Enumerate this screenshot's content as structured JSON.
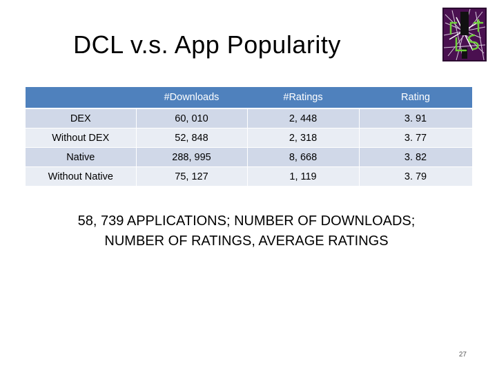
{
  "slide": {
    "title": "DCL v.s. App Popularity",
    "table": {
      "headers": [
        "",
        "#Downloads",
        "#Ratings",
        "Rating"
      ],
      "rows": [
        [
          "DEX",
          "60, 010",
          "2, 448",
          "3. 91"
        ],
        [
          "Without DEX",
          "52, 848",
          "2, 318",
          "3. 77"
        ],
        [
          "Native",
          "288, 995",
          "8, 668",
          "3. 82"
        ],
        [
          "Without Native",
          "75, 127",
          "1, 119",
          "3. 79"
        ]
      ]
    },
    "caption_line1": "58, 739 APPLICATIONS; NUMBER OF DOWNLOADS;",
    "caption_line2": "NUMBER OF RATINGS, AVERAGE RATINGS",
    "slide_number": "27"
  },
  "colors": {
    "header_bg": "#4f81bd",
    "row_odd": "#d0d8e8",
    "row_even": "#e9edf4",
    "logo_bg": "#4a1050",
    "logo_accent": "#6fcf3a"
  },
  "logo": {
    "icon": "graph-network-logo-icon"
  }
}
